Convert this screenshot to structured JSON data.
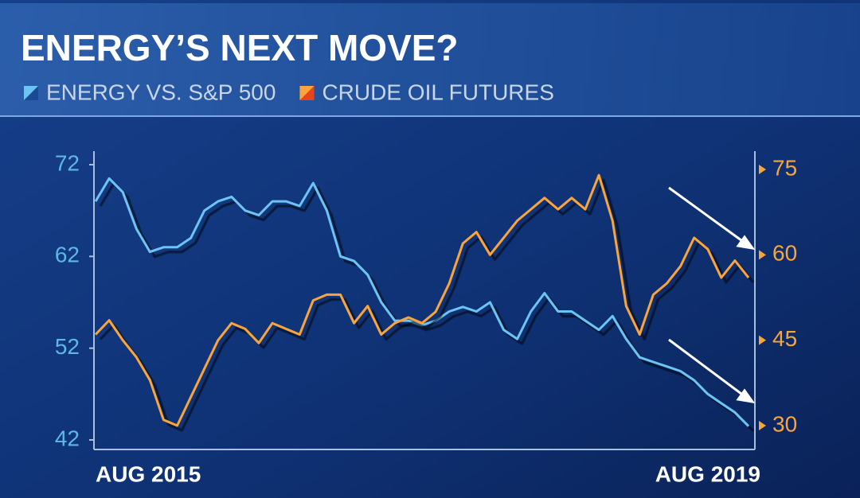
{
  "chart_data": {
    "type": "line",
    "title": "ENERGY’S NEXT MOVE?",
    "categories": [
      "AUG 2015",
      null,
      null,
      null,
      null,
      null,
      null,
      null,
      null,
      null,
      null,
      null,
      null,
      null,
      null,
      null,
      null,
      null,
      null,
      null,
      null,
      null,
      null,
      null,
      null,
      null,
      null,
      null,
      null,
      null,
      null,
      null,
      null,
      null,
      null,
      null,
      null,
      null,
      null,
      null,
      null,
      null,
      null,
      null,
      null,
      null,
      null,
      null,
      "AUG 2019"
    ],
    "series": [
      {
        "name": "ENERGY VS. S&P 500",
        "color": "#6cc4f2",
        "axis": "y",
        "values": [
          68,
          70.5,
          69,
          65,
          62.5,
          63,
          63,
          64,
          67,
          68,
          68.5,
          67,
          66.5,
          68,
          68,
          67.5,
          70,
          67,
          62,
          61.5,
          60,
          57,
          55,
          55,
          54.5,
          55,
          56,
          56.5,
          56,
          57,
          54,
          53,
          56,
          58,
          56,
          56,
          55,
          54,
          55.5,
          53,
          51,
          50.5,
          50,
          49.5,
          48.5,
          47,
          46,
          45,
          43.5
        ]
      },
      {
        "name": "CRUDE OIL FUTURES",
        "color": "#f9a53a",
        "axis": "y2",
        "values": [
          46,
          48.5,
          45,
          42,
          38,
          31,
          30,
          35,
          40,
          45,
          48,
          47,
          44.5,
          48,
          47,
          46,
          52,
          53,
          53,
          48,
          51,
          46,
          48,
          49,
          48,
          50,
          55,
          62,
          64,
          60,
          63,
          66,
          68,
          70,
          68,
          70,
          68,
          74,
          66,
          51,
          46,
          53,
          55,
          58,
          63,
          61,
          56,
          59,
          56
        ]
      }
    ],
    "ylim": [
      42,
      72
    ],
    "yticks": [
      42,
      52,
      62,
      72
    ],
    "y2lim": [
      30,
      75
    ],
    "y2ticks": [
      30,
      45,
      60,
      75
    ]
  }
}
